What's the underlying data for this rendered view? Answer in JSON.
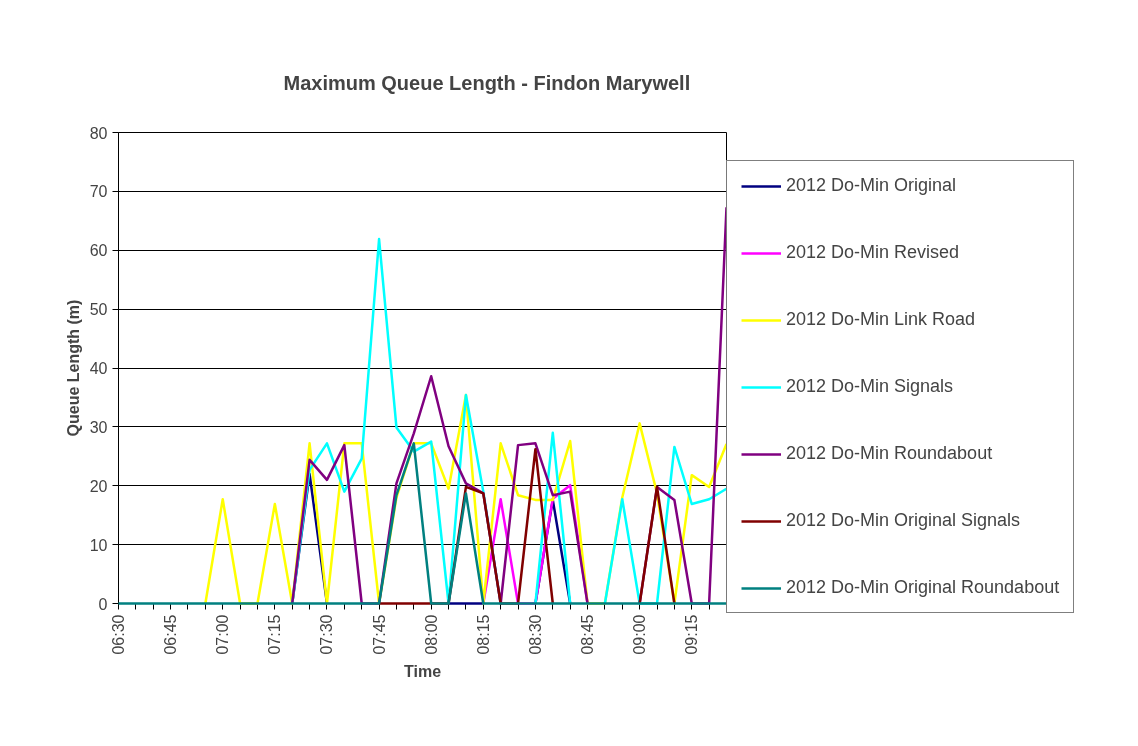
{
  "chart_data": {
    "type": "line",
    "title": "Maximum Queue Length - Findon Marywell",
    "xlabel": "Time",
    "ylabel": "Queue Length (m)",
    "categories": [
      "06:30",
      null,
      null,
      "06:45",
      null,
      null,
      "07:00",
      null,
      null,
      "07:15",
      null,
      null,
      "07:30",
      null,
      null,
      "07:45",
      null,
      null,
      "08:00",
      null,
      null,
      "08:15",
      null,
      null,
      "08:30",
      null,
      null,
      "08:45",
      null,
      null,
      "09:00",
      null,
      null,
      "09:15",
      null,
      null
    ],
    "ylim": [
      0,
      80
    ],
    "yticks": [
      0,
      10,
      20,
      30,
      40,
      50,
      60,
      70,
      80
    ],
    "grid": "y",
    "legend": "right",
    "line_style": "solid",
    "series": [
      {
        "name": "2012 Do-Min Original",
        "color": "#000080",
        "values": [
          null,
          null,
          null,
          null,
          null,
          null,
          null,
          null,
          null,
          null,
          0,
          22,
          0,
          null,
          null,
          null,
          null,
          null,
          null,
          0,
          0,
          0,
          null,
          null,
          0,
          17.6,
          0,
          null,
          null,
          null,
          null,
          null,
          null,
          null,
          null,
          null
        ]
      },
      {
        "name": "2012 Do-Min Revised",
        "color": "#ff00ff",
        "values": [
          null,
          null,
          null,
          null,
          null,
          null,
          null,
          null,
          null,
          null,
          null,
          null,
          null,
          null,
          null,
          null,
          null,
          null,
          null,
          null,
          null,
          0,
          17.7,
          0,
          0,
          17.8,
          20.1,
          0,
          null,
          null,
          null,
          null,
          null,
          null,
          null,
          null
        ]
      },
      {
        "name": "2012 Do-Min Link Road",
        "color": "#ffff00",
        "values": [
          null,
          null,
          null,
          null,
          null,
          0,
          17.7,
          0,
          0,
          16.9,
          0,
          27.2,
          0,
          27.2,
          27.2,
          0,
          18,
          27.2,
          27.2,
          19.5,
          35.4,
          0,
          27.2,
          18.4,
          17.6,
          17.6,
          27.6,
          0,
          0,
          18,
          30.6,
          18.7,
          0,
          21.8,
          19.8,
          27.1
        ]
      },
      {
        "name": "2012 Do-Min Signals",
        "color": "#00ffff",
        "values": [
          null,
          null,
          null,
          null,
          null,
          null,
          null,
          null,
          null,
          null,
          0,
          22.7,
          27.2,
          19,
          24.6,
          61.9,
          29.9,
          25.8,
          27.5,
          0,
          35.4,
          19,
          0,
          null,
          0,
          29,
          0,
          null,
          0,
          17.7,
          0,
          0,
          26.6,
          16.9,
          17.7,
          19.5
        ]
      },
      {
        "name": "2012 Do-Min Roundabout",
        "color": "#800080",
        "values": [
          null,
          null,
          null,
          null,
          null,
          null,
          null,
          null,
          null,
          null,
          0,
          24.4,
          21,
          26.9,
          0,
          0,
          20.4,
          28.9,
          38.6,
          26.7,
          20.4,
          18.7,
          0,
          26.9,
          27.2,
          18.4,
          19,
          0,
          null,
          null,
          0,
          19.8,
          17.6,
          0,
          0,
          67.3
        ]
      },
      {
        "name": "2012 Do-Min Original Signals",
        "color": "#800000",
        "values": [
          null,
          null,
          null,
          null,
          null,
          null,
          null,
          null,
          null,
          null,
          null,
          null,
          null,
          null,
          null,
          0,
          0,
          0,
          0,
          0,
          19.8,
          18.7,
          0,
          0,
          26.2,
          0,
          null,
          null,
          null,
          null,
          0,
          19.8,
          0,
          null,
          null,
          null
        ]
      },
      {
        "name": "2012 Do-Min Original Roundabout",
        "color": "#008080",
        "values": [
          0,
          0,
          0,
          0,
          0,
          0,
          0,
          0,
          0,
          0,
          0,
          0,
          0,
          0,
          0,
          0,
          18.4,
          27.2,
          0,
          0,
          18.7,
          0,
          0,
          0,
          0,
          0,
          0,
          0,
          0,
          0,
          0,
          0,
          0,
          0,
          0,
          0
        ]
      }
    ]
  }
}
